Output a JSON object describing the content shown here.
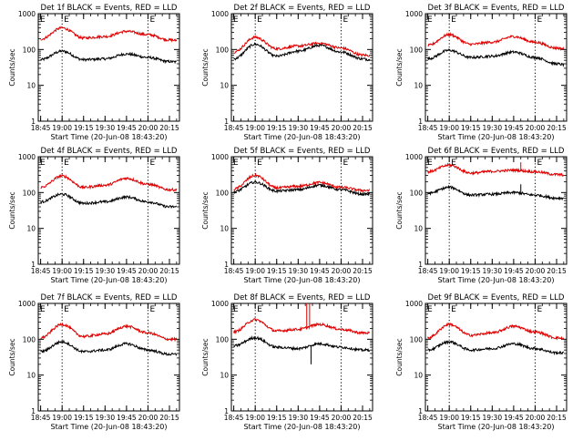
{
  "figure": {
    "start_time_label": "Start Time (20-Jun-08 18:43:20)",
    "ylabel": "Counts/sec"
  },
  "chart_data": [
    {
      "type": "line",
      "title": "Det 1f BLACK = Events, RED = LLD",
      "xlabel": "Start Time (20-Jun-08 18:43:20)",
      "ylabel": "Counts/sec",
      "xticks": [
        "18:45",
        "19:00",
        "19:15",
        "19:30",
        "19:45",
        "20:00",
        "20:15"
      ],
      "yticks": [
        "1",
        "10",
        "100",
        "1000"
      ],
      "ylim": [
        1,
        1000
      ],
      "y_scale": "log",
      "time_range": [
        "18:43:20",
        "20:22"
      ],
      "vertical_markers": [
        "19:00",
        "20:00"
      ],
      "markers_text": "E",
      "series": [
        {
          "color": "#000000",
          "x": [
            "18:45",
            "19:00",
            "19:15",
            "19:30",
            "19:45",
            "20:00",
            "20:15",
            "20:20"
          ],
          "y": [
            52,
            90,
            52,
            55,
            75,
            60,
            46,
            45
          ]
        },
        {
          "color": "#e00000",
          "x": [
            "18:45",
            "19:00",
            "19:15",
            "19:30",
            "19:45",
            "20:00",
            "20:15",
            "20:20"
          ],
          "y": [
            195,
            400,
            210,
            230,
            320,
            260,
            185,
            180
          ]
        }
      ],
      "spikes": []
    },
    {
      "type": "line",
      "title": "Det 2f BLACK = Events, RED = LLD",
      "xlabel": "Start Time (20-Jun-08 18:43:20)",
      "ylabel": "Counts/sec",
      "xticks": [
        "18:45",
        "19:00",
        "19:15",
        "19:30",
        "19:45",
        "20:00",
        "20:15"
      ],
      "yticks": [
        "1",
        "10",
        "100",
        "1000"
      ],
      "ylim": [
        1,
        1000
      ],
      "y_scale": "log",
      "time_range": [
        "18:43:20",
        "20:22"
      ],
      "vertical_markers": [
        "19:00",
        "20:00"
      ],
      "markers_text": "E",
      "series": [
        {
          "color": "#000000",
          "x": [
            "18:45",
            "19:00",
            "19:15",
            "19:30",
            "19:45",
            "20:00",
            "20:15",
            "20:20"
          ],
          "y": [
            55,
            140,
            65,
            90,
            130,
            85,
            55,
            52
          ]
        },
        {
          "color": "#e00000",
          "x": [
            "18:45",
            "19:00",
            "19:15",
            "19:30",
            "19:45",
            "20:00",
            "20:15",
            "20:20"
          ],
          "y": [
            85,
            220,
            105,
            125,
            150,
            110,
            70,
            68
          ]
        }
      ],
      "spikes": []
    },
    {
      "type": "line",
      "title": "Det 3f BLACK = Events, RED = LLD",
      "xlabel": "Start Time (20-Jun-08 18:43:20)",
      "ylabel": "Counts/sec",
      "xticks": [
        "18:45",
        "19:00",
        "19:15",
        "19:30",
        "19:45",
        "20:00",
        "20:15"
      ],
      "yticks": [
        "1",
        "10",
        "100",
        "1000"
      ],
      "ylim": [
        1,
        1000
      ],
      "y_scale": "log",
      "time_range": [
        "18:43:20",
        "20:22"
      ],
      "vertical_markers": [
        "19:00",
        "20:00"
      ],
      "markers_text": "E",
      "series": [
        {
          "color": "#000000",
          "x": [
            "18:45",
            "19:00",
            "19:15",
            "19:30",
            "19:45",
            "20:00",
            "20:15",
            "20:20"
          ],
          "y": [
            55,
            95,
            60,
            65,
            85,
            60,
            40,
            38
          ]
        },
        {
          "color": "#e00000",
          "x": [
            "18:45",
            "19:00",
            "19:15",
            "19:30",
            "19:45",
            "20:00",
            "20:15",
            "20:20"
          ],
          "y": [
            130,
            260,
            140,
            160,
            230,
            160,
            110,
            105
          ]
        }
      ],
      "spikes": []
    },
    {
      "type": "line",
      "title": "Det 4f BLACK = Events, RED = LLD",
      "xlabel": "Start Time (20-Jun-08 18:43:20)",
      "ylabel": "Counts/sec",
      "xticks": [
        "18:45",
        "19:00",
        "19:15",
        "19:30",
        "19:45",
        "20:00",
        "20:15"
      ],
      "yticks": [
        "1",
        "10",
        "100",
        "1000"
      ],
      "ylim": [
        1,
        1000
      ],
      "y_scale": "log",
      "time_range": [
        "18:43:20",
        "20:22"
      ],
      "vertical_markers": [
        "19:00",
        "20:00"
      ],
      "markers_text": "E",
      "series": [
        {
          "color": "#000000",
          "x": [
            "18:45",
            "19:00",
            "19:15",
            "19:30",
            "19:45",
            "20:00",
            "20:15",
            "20:20"
          ],
          "y": [
            55,
            90,
            50,
            55,
            75,
            55,
            40,
            40
          ]
        },
        {
          "color": "#e00000",
          "x": [
            "18:45",
            "19:00",
            "19:15",
            "19:30",
            "19:45",
            "20:00",
            "20:15",
            "20:20"
          ],
          "y": [
            140,
            290,
            140,
            160,
            250,
            170,
            120,
            120
          ]
        }
      ],
      "spikes": []
    },
    {
      "type": "line",
      "title": "Det 5f BLACK = Events, RED = LLD",
      "xlabel": "Start Time (20-Jun-08 18:43:20)",
      "ylabel": "Counts/sec",
      "xticks": [
        "18:45",
        "19:00",
        "19:15",
        "19:30",
        "19:45",
        "20:00",
        "20:15"
      ],
      "yticks": [
        "1",
        "10",
        "100",
        "1000"
      ],
      "ylim": [
        1,
        1000
      ],
      "y_scale": "log",
      "time_range": [
        "18:43:20",
        "20:22"
      ],
      "vertical_markers": [
        "19:00",
        "20:00"
      ],
      "markers_text": "E",
      "series": [
        {
          "color": "#000000",
          "x": [
            "18:45",
            "19:00",
            "19:15",
            "19:30",
            "19:45",
            "20:00",
            "20:15",
            "20:20"
          ],
          "y": [
            105,
            195,
            110,
            120,
            160,
            120,
            90,
            90
          ]
        },
        {
          "color": "#e00000",
          "x": [
            "18:45",
            "19:00",
            "19:15",
            "19:30",
            "19:45",
            "20:00",
            "20:15",
            "20:20"
          ],
          "y": [
            125,
            300,
            135,
            150,
            190,
            140,
            115,
            115
          ]
        }
      ],
      "spikes": []
    },
    {
      "type": "line",
      "title": "Det 6f BLACK = Events, RED = LLD",
      "xlabel": "Start Time (20-Jun-08 18:43:20)",
      "ylabel": "Counts/sec",
      "xticks": [
        "18:45",
        "19:00",
        "19:15",
        "19:30",
        "19:45",
        "20:00",
        "20:15"
      ],
      "yticks": [
        "1",
        "10",
        "100",
        "1000"
      ],
      "ylim": [
        1,
        1000
      ],
      "y_scale": "log",
      "time_range": [
        "18:43:20",
        "20:22"
      ],
      "vertical_markers": [
        "19:00",
        "20:00"
      ],
      "markers_text": "E",
      "series": [
        {
          "color": "#000000",
          "x": [
            "18:45",
            "19:00",
            "19:15",
            "19:30",
            "19:45",
            "20:00",
            "20:15",
            "20:20"
          ],
          "y": [
            95,
            140,
            85,
            90,
            100,
            85,
            70,
            70
          ]
        },
        {
          "color": "#e00000",
          "x": [
            "18:45",
            "19:00",
            "19:15",
            "19:30",
            "19:45",
            "20:00",
            "20:15",
            "20:20"
          ],
          "y": [
            380,
            580,
            350,
            390,
            420,
            380,
            320,
            310
          ]
        }
      ],
      "spikes": [
        {
          "series": 0,
          "x": "19:50",
          "y": 170
        },
        {
          "series": 1,
          "x": "19:50",
          "y": 700
        }
      ]
    },
    {
      "type": "line",
      "title": "Det 7f BLACK = Events, RED = LLD",
      "xlabel": "Start Time (20-Jun-08 18:43:20)",
      "ylabel": "Counts/sec",
      "xticks": [
        "18:45",
        "19:00",
        "19:15",
        "19:30",
        "19:45",
        "20:00",
        "20:15"
      ],
      "yticks": [
        "1",
        "10",
        "100",
        "1000"
      ],
      "ylim": [
        1,
        1000
      ],
      "y_scale": "log",
      "time_range": [
        "18:43:20",
        "20:22"
      ],
      "vertical_markers": [
        "19:00",
        "20:00"
      ],
      "markers_text": "E",
      "series": [
        {
          "color": "#000000",
          "x": [
            "18:45",
            "19:00",
            "19:15",
            "19:30",
            "19:45",
            "20:00",
            "20:15",
            "20:20"
          ],
          "y": [
            45,
            85,
            45,
            50,
            75,
            50,
            38,
            38
          ]
        },
        {
          "color": "#e00000",
          "x": [
            "18:45",
            "19:00",
            "19:15",
            "19:30",
            "19:45",
            "20:00",
            "20:15",
            "20:20"
          ],
          "y": [
            110,
            260,
            120,
            140,
            230,
            150,
            100,
            100
          ]
        }
      ],
      "spikes": []
    },
    {
      "type": "line",
      "title": "Det 8f BLACK = Events, RED = LLD",
      "xlabel": "Start Time (20-Jun-08 18:43:20)",
      "ylabel": "Counts/sec",
      "xticks": [
        "18:45",
        "19:00",
        "19:15",
        "19:30",
        "19:45",
        "20:00",
        "20:15"
      ],
      "yticks": [
        "1",
        "10",
        "100",
        "1000"
      ],
      "ylim": [
        1,
        1000
      ],
      "y_scale": "log",
      "time_range": [
        "18:43:20",
        "20:22"
      ],
      "vertical_markers": [
        "19:00",
        "20:00"
      ],
      "markers_text": "E",
      "series": [
        {
          "color": "#000000",
          "x": [
            "18:45",
            "19:00",
            "19:15",
            "19:30",
            "19:45",
            "20:00",
            "20:15",
            "20:20"
          ],
          "y": [
            65,
            110,
            60,
            55,
            75,
            60,
            50,
            50
          ]
        },
        {
          "color": "#e00000",
          "x": [
            "18:45",
            "19:00",
            "19:15",
            "19:30",
            "19:45",
            "20:00",
            "20:15",
            "20:20"
          ],
          "y": [
            160,
            350,
            170,
            190,
            260,
            190,
            150,
            150
          ]
        }
      ],
      "spikes": [
        {
          "series": 1,
          "x": "19:36",
          "y": 1000
        },
        {
          "series": 1,
          "x": "19:38",
          "y": 1000
        },
        {
          "series": 0,
          "x": "19:39",
          "y": 20
        }
      ]
    },
    {
      "type": "line",
      "title": "Det 9f BLACK = Events, RED = LLD",
      "xlabel": "Start Time (20-Jun-08 18:43:20)",
      "ylabel": "Counts/sec",
      "xticks": [
        "18:45",
        "19:00",
        "19:15",
        "19:30",
        "19:45",
        "20:00",
        "20:15"
      ],
      "yticks": [
        "1",
        "10",
        "100",
        "1000"
      ],
      "ylim": [
        1,
        1000
      ],
      "y_scale": "log",
      "time_range": [
        "18:43:20",
        "20:22"
      ],
      "vertical_markers": [
        "19:00",
        "20:00"
      ],
      "markers_text": "E",
      "series": [
        {
          "color": "#000000",
          "x": [
            "18:45",
            "19:00",
            "19:15",
            "19:30",
            "19:45",
            "20:00",
            "20:15",
            "20:20"
          ],
          "y": [
            50,
            85,
            50,
            55,
            75,
            55,
            42,
            42
          ]
        },
        {
          "color": "#e00000",
          "x": [
            "18:45",
            "19:00",
            "19:15",
            "19:30",
            "19:45",
            "20:00",
            "20:15",
            "20:20"
          ],
          "y": [
            110,
            260,
            130,
            150,
            230,
            160,
            110,
            105
          ]
        }
      ],
      "spikes": []
    }
  ]
}
